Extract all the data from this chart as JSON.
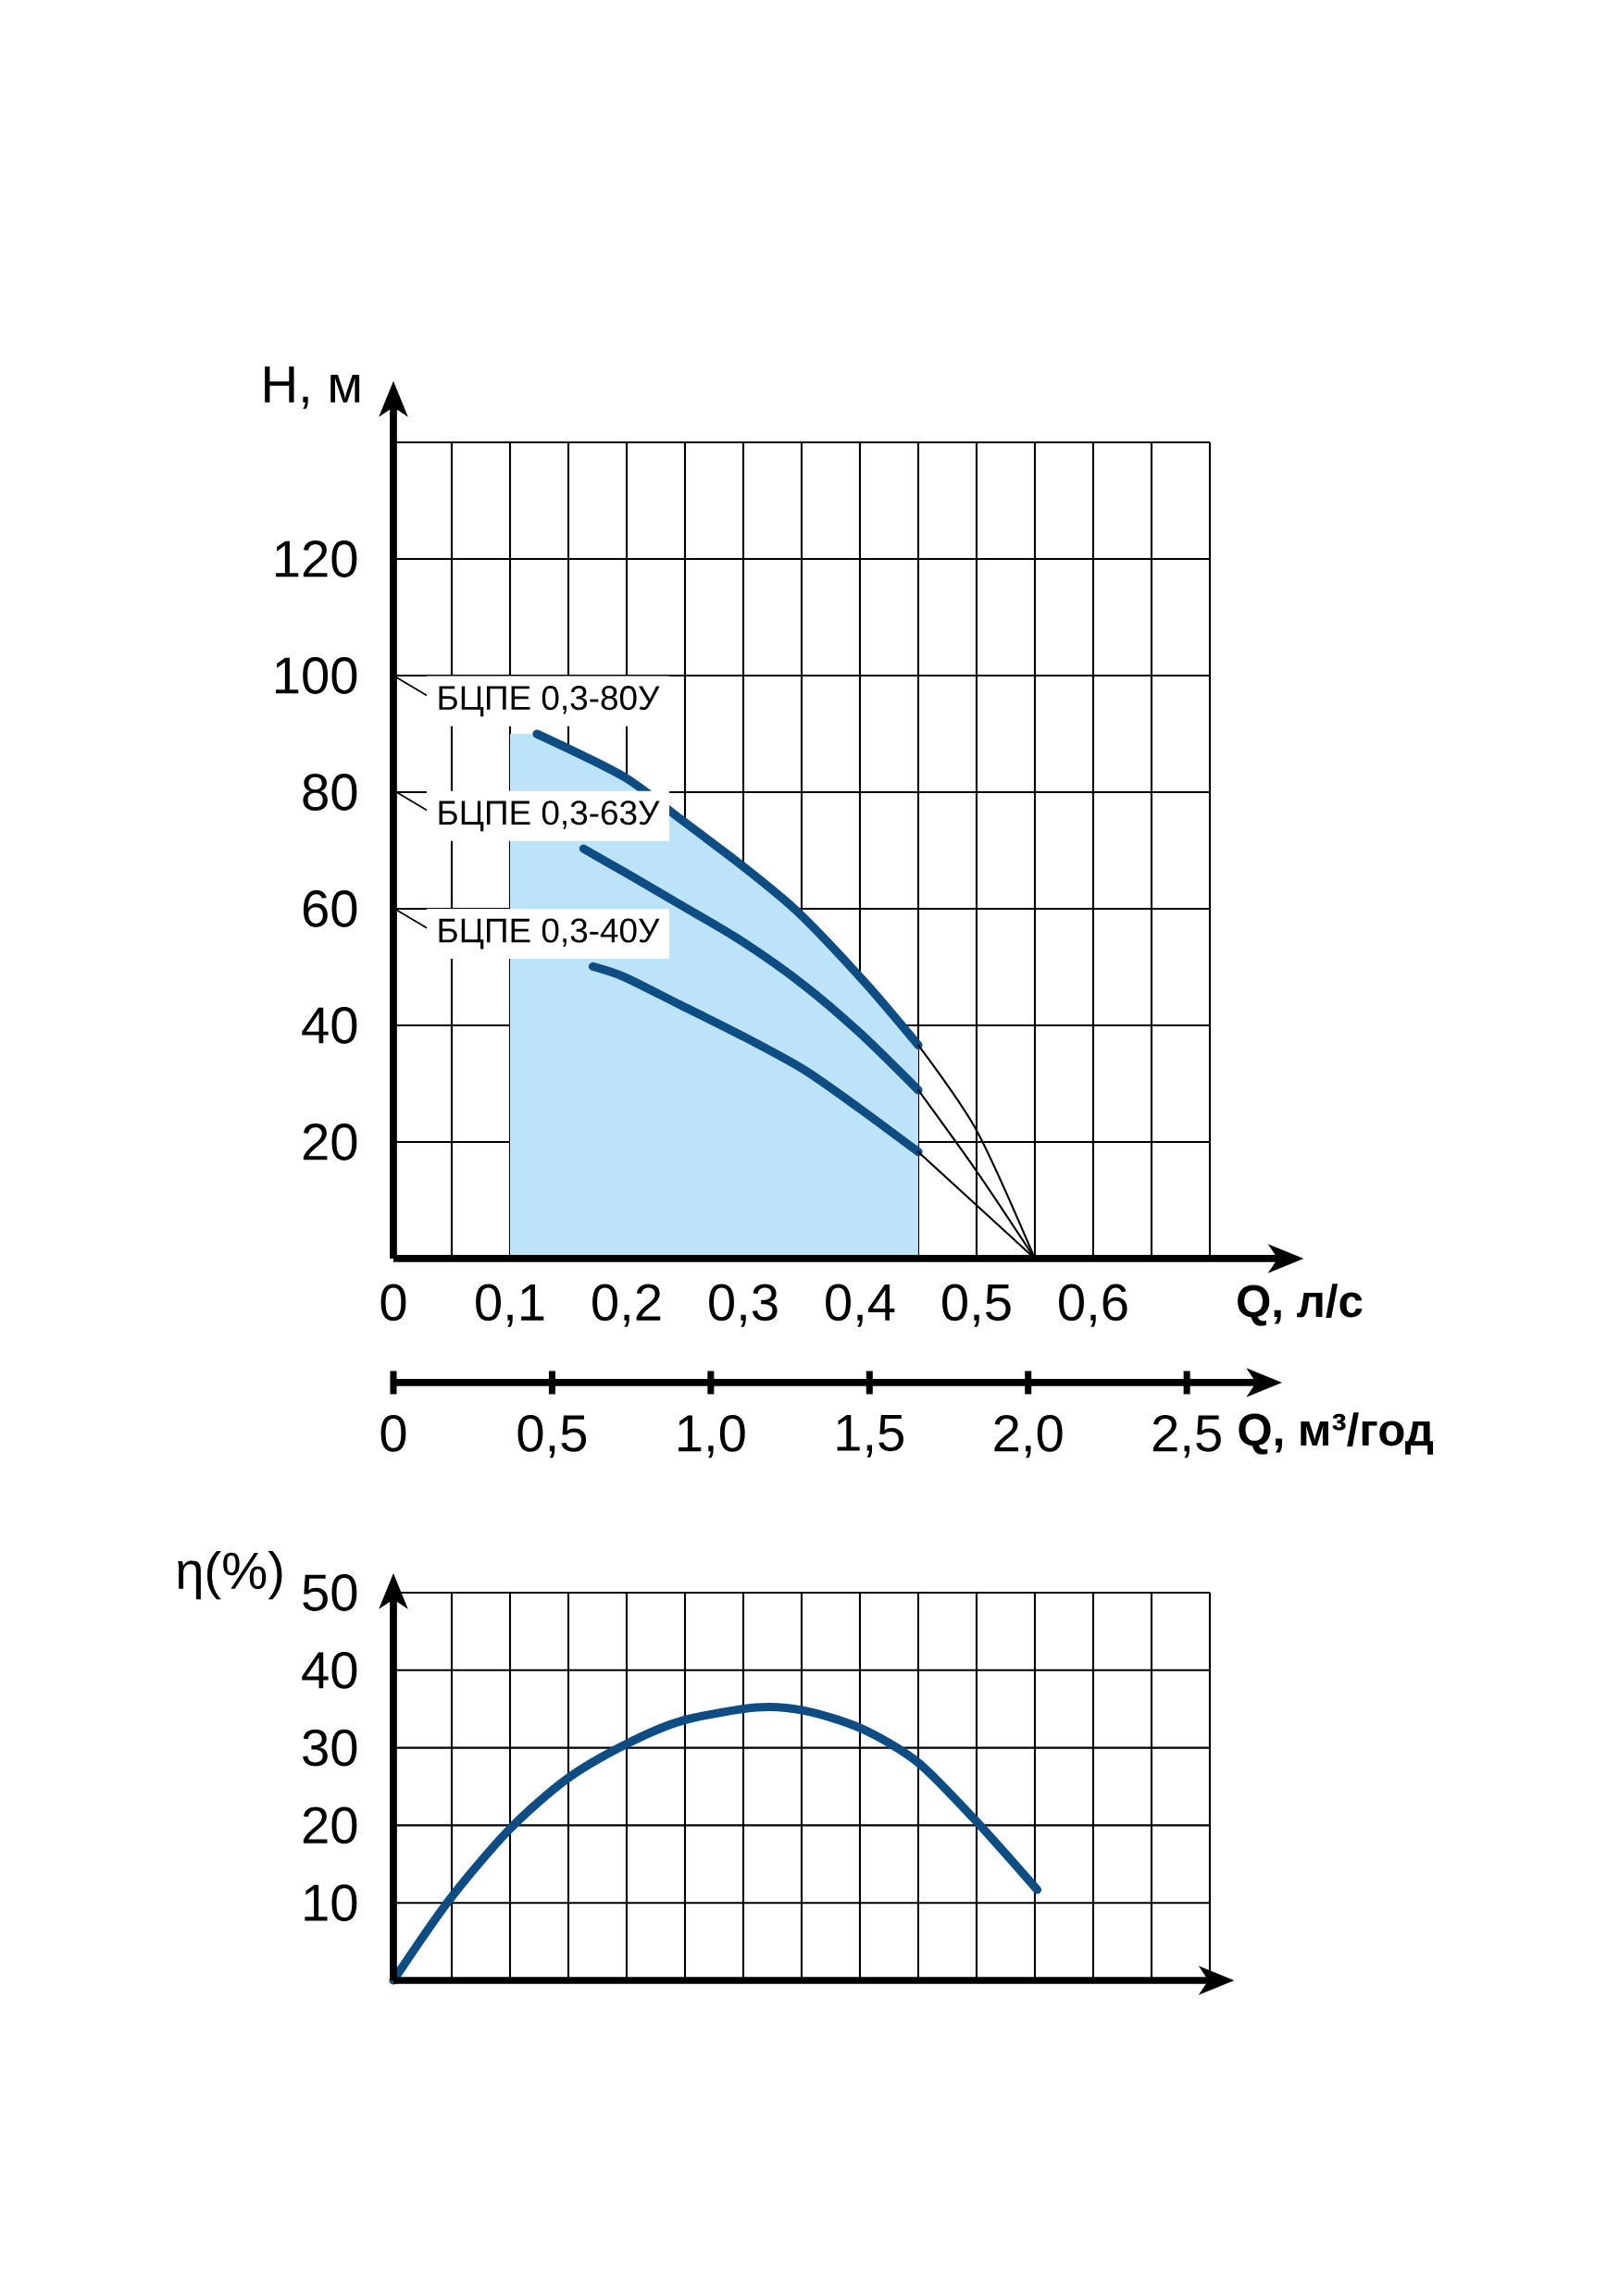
{
  "chart_data": [
    {
      "type": "line",
      "xlabel": "Q, л/с",
      "ylabel": "H, м",
      "x2label": "Q, м³/год",
      "xlim": [
        0,
        0.7
      ],
      "ylim": [
        0,
        140
      ],
      "xticks": [
        0,
        {
          "value": 0.05,
          "label": null
        },
        {
          "value": 0.1,
          "label": "0,1"
        },
        {
          "value": 0.15,
          "label": null
        },
        {
          "value": 0.2,
          "label": "0,2"
        },
        {
          "value": 0.25,
          "label": null
        },
        {
          "value": 0.3,
          "label": "0,3"
        },
        {
          "value": 0.35,
          "label": null
        },
        {
          "value": 0.4,
          "label": "0,4"
        },
        {
          "value": 0.45,
          "label": null
        },
        {
          "value": 0.5,
          "label": "0,5"
        },
        {
          "value": 0.55,
          "label": null
        },
        {
          "value": 0.6,
          "label": "0,6"
        },
        {
          "value": 0.65,
          "label": null
        },
        {
          "value": 0.7,
          "label": null
        }
      ],
      "yticks": [
        20,
        40,
        60,
        80,
        100,
        120,
        {
          "value": 140,
          "label": null
        }
      ],
      "x2lim": [
        0,
        2.8
      ],
      "x2ticks": [
        0,
        {
          "value": 0.5,
          "label": "0,5"
        },
        {
          "value": 1.0,
          "label": "1,0"
        },
        {
          "value": 1.5,
          "label": "1,5"
        },
        {
          "value": 2.0,
          "label": "2,0"
        },
        {
          "value": 2.5,
          "label": "2,5"
        }
      ],
      "grid": true,
      "marker": "none",
      "line_style": "solid",
      "bands": [
        {
          "axis": "x",
          "from": 0.1,
          "to": 0.45,
          "color": "#bde3f8"
        }
      ],
      "series": [
        {
          "name": "БЦПЕ 0,3-80У",
          "color": "#0e4c84",
          "x": [
            0.123,
            0.198,
            0.246,
            0.299,
            0.347,
            0.405,
            0.45
          ],
          "values": [
            90,
            82.6,
            75.4,
            67.4,
            59.4,
            47.2,
            36.6
          ]
        },
        {
          "name": "БЦПЕ 0,3-63У",
          "color": "#0e4c84",
          "x": [
            0.163,
            0.198,
            0.246,
            0.299,
            0.352,
            0.4,
            0.45
          ],
          "values": [
            70.3,
            66.3,
            60.7,
            54.4,
            46.9,
            38.7,
            28.9
          ]
        },
        {
          "name": "БЦПЕ 0,3-40У",
          "color": "#0e4c84",
          "x": [
            0.171,
            0.198,
            0.246,
            0.299,
            0.352,
            0.4,
            0.45
          ],
          "values": [
            50.1,
            48.3,
            43.5,
            38.2,
            32.4,
            25.7,
            18.3
          ]
        },
        {
          "color": "#000000",
          "x": [
            0.45,
            0.5,
            0.55
          ],
          "values": [
            36.6,
            22,
            0
          ]
        },
        {
          "color": "#000000",
          "x": [
            0.45,
            0.5,
            0.55
          ],
          "values": [
            28.9,
            15,
            0
          ]
        },
        {
          "color": "#000000",
          "x": [
            0.45,
            0.55
          ],
          "values": [
            18.3,
            0
          ]
        }
      ]
    },
    {
      "type": "line",
      "ylabel": "η(%)",
      "xlim": [
        0,
        0.7
      ],
      "ylim": [
        0,
        50
      ],
      "tick_labels": "y",
      "grid": true,
      "marker": "none",
      "line_style": "solid",
      "xticks": [
        {
          "value": 0.05,
          "label": null
        },
        {
          "value": 0.1,
          "label": null
        },
        {
          "value": 0.15,
          "label": null
        },
        {
          "value": 0.2,
          "label": null
        },
        {
          "value": 0.25,
          "label": null
        },
        {
          "value": 0.3,
          "label": null
        },
        {
          "value": 0.35,
          "label": null
        },
        {
          "value": 0.4,
          "label": null
        },
        {
          "value": 0.45,
          "label": null
        },
        {
          "value": 0.5,
          "label": null
        },
        {
          "value": 0.55,
          "label": null
        },
        {
          "value": 0.6,
          "label": null
        },
        {
          "value": 0.65,
          "label": null
        },
        {
          "value": 0.7,
          "label": null
        }
      ],
      "yticks": [
        10,
        20,
        30,
        40,
        50
      ],
      "series": [
        {
          "color": "#0e4c84",
          "x": [
            0,
            0.0475,
            0.099,
            0.148,
            0.2,
            0.248,
            0.311,
            0.352,
            0.401,
            0.449,
            0.498,
            0.552
          ],
          "values": [
            0,
            10.3,
            19.4,
            25.9,
            30.5,
            33.5,
            35.2,
            34.8,
            32.5,
            28.2,
            20.8,
            11.7
          ]
        }
      ]
    }
  ]
}
